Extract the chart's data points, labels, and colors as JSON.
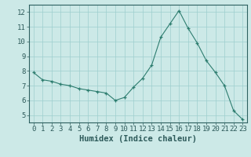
{
  "x": [
    0,
    1,
    2,
    3,
    4,
    5,
    6,
    7,
    8,
    9,
    10,
    11,
    12,
    13,
    14,
    15,
    16,
    17,
    18,
    19,
    20,
    21,
    22,
    23
  ],
  "y": [
    7.9,
    7.4,
    7.3,
    7.1,
    7.0,
    6.8,
    6.7,
    6.6,
    6.5,
    6.0,
    6.2,
    6.9,
    7.5,
    8.4,
    10.3,
    11.2,
    12.1,
    10.9,
    9.9,
    8.7,
    7.9,
    7.0,
    5.3,
    4.7
  ],
  "line_color": "#2d7d6f",
  "marker": "+",
  "bg_color": "#cce9e7",
  "grid_color": "#9ecece",
  "xlabel": "Humidex (Indice chaleur)",
  "ylim": [
    4.5,
    12.5
  ],
  "xlim": [
    -0.5,
    23.5
  ],
  "yticks": [
    5,
    6,
    7,
    8,
    9,
    10,
    11,
    12
  ],
  "xticks": [
    0,
    1,
    2,
    3,
    4,
    5,
    6,
    7,
    8,
    9,
    10,
    11,
    12,
    13,
    14,
    15,
    16,
    17,
    18,
    19,
    20,
    21,
    22,
    23
  ],
  "tick_label_color": "#2d5a5a",
  "label_fontsize": 6.5,
  "xlabel_fontsize": 7.5,
  "axis_color": "#2d6060",
  "line_width": 0.8,
  "marker_size": 3.5
}
